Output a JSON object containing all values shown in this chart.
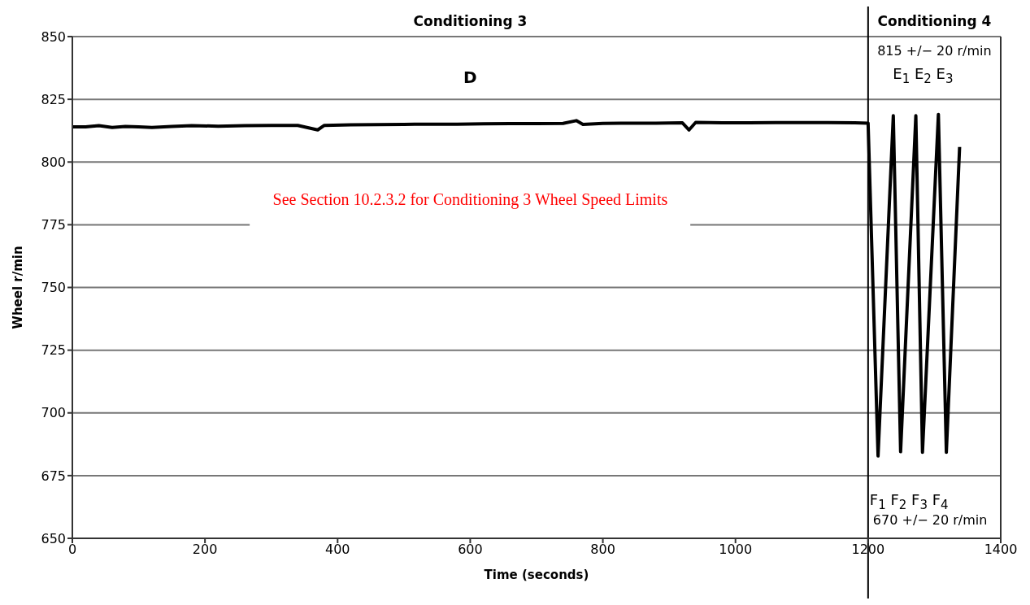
{
  "chart_data": {
    "type": "line",
    "xlabel": "Time (seconds)",
    "ylabel": "Wheel r/min",
    "x": [
      0,
      20,
      40,
      60,
      80,
      100,
      120,
      150,
      180,
      220,
      260,
      300,
      340,
      370,
      380,
      420,
      460,
      500,
      540,
      580,
      620,
      660,
      700,
      740,
      760,
      770,
      800,
      840,
      880,
      920,
      930,
      940,
      980,
      1020,
      1060,
      1100,
      1140,
      1180,
      1200,
      1215,
      1238,
      1249,
      1272,
      1282,
      1306,
      1318,
      1338
    ],
    "series": [
      {
        "color": "#000000",
        "values": [
          814,
          814,
          814.5,
          813.8,
          814.2,
          814,
          813.8,
          814.2,
          814.5,
          814.3,
          814.5,
          814.6,
          814.6,
          812.8,
          814.6,
          814.8,
          814.9,
          815,
          815.1,
          815.1,
          815.2,
          815.3,
          815.3,
          815.4,
          816.5,
          815,
          815.4,
          815.5,
          815.5,
          815.6,
          812.8,
          815.8,
          815.6,
          815.6,
          815.7,
          815.7,
          815.7,
          815.6,
          815.5,
          682.8,
          818.5,
          684.5,
          818.5,
          684.3,
          819,
          684.3,
          806
        ]
      }
    ],
    "xlim": [
      0,
      1400
    ],
    "xticks": [
      0,
      200,
      400,
      600,
      800,
      1000,
      1200,
      1400
    ],
    "ylim": [
      650,
      850
    ],
    "yticks": [
      650,
      675,
      700,
      725,
      750,
      775,
      800,
      825,
      850
    ],
    "grid": "y",
    "legend": false,
    "marker": "none",
    "line_style": "solid",
    "ref_lines": [
      {
        "axis": "x",
        "value": 1200,
        "color": "#000000"
      }
    ],
    "annotations": [
      "Conditioning 3",
      "Conditioning 4",
      "D",
      "815 +/− 20 r/min",
      "E$_{1}$ E$_{2}$ E$_{3}$",
      "See Section 10.2.3.2 for Conditioning 3 Wheel Speed Limits",
      "F$_{1}$ F$_{2}$ F$_{3}$ F$_{4}$",
      "670 +/− 20 r/min"
    ]
  }
}
